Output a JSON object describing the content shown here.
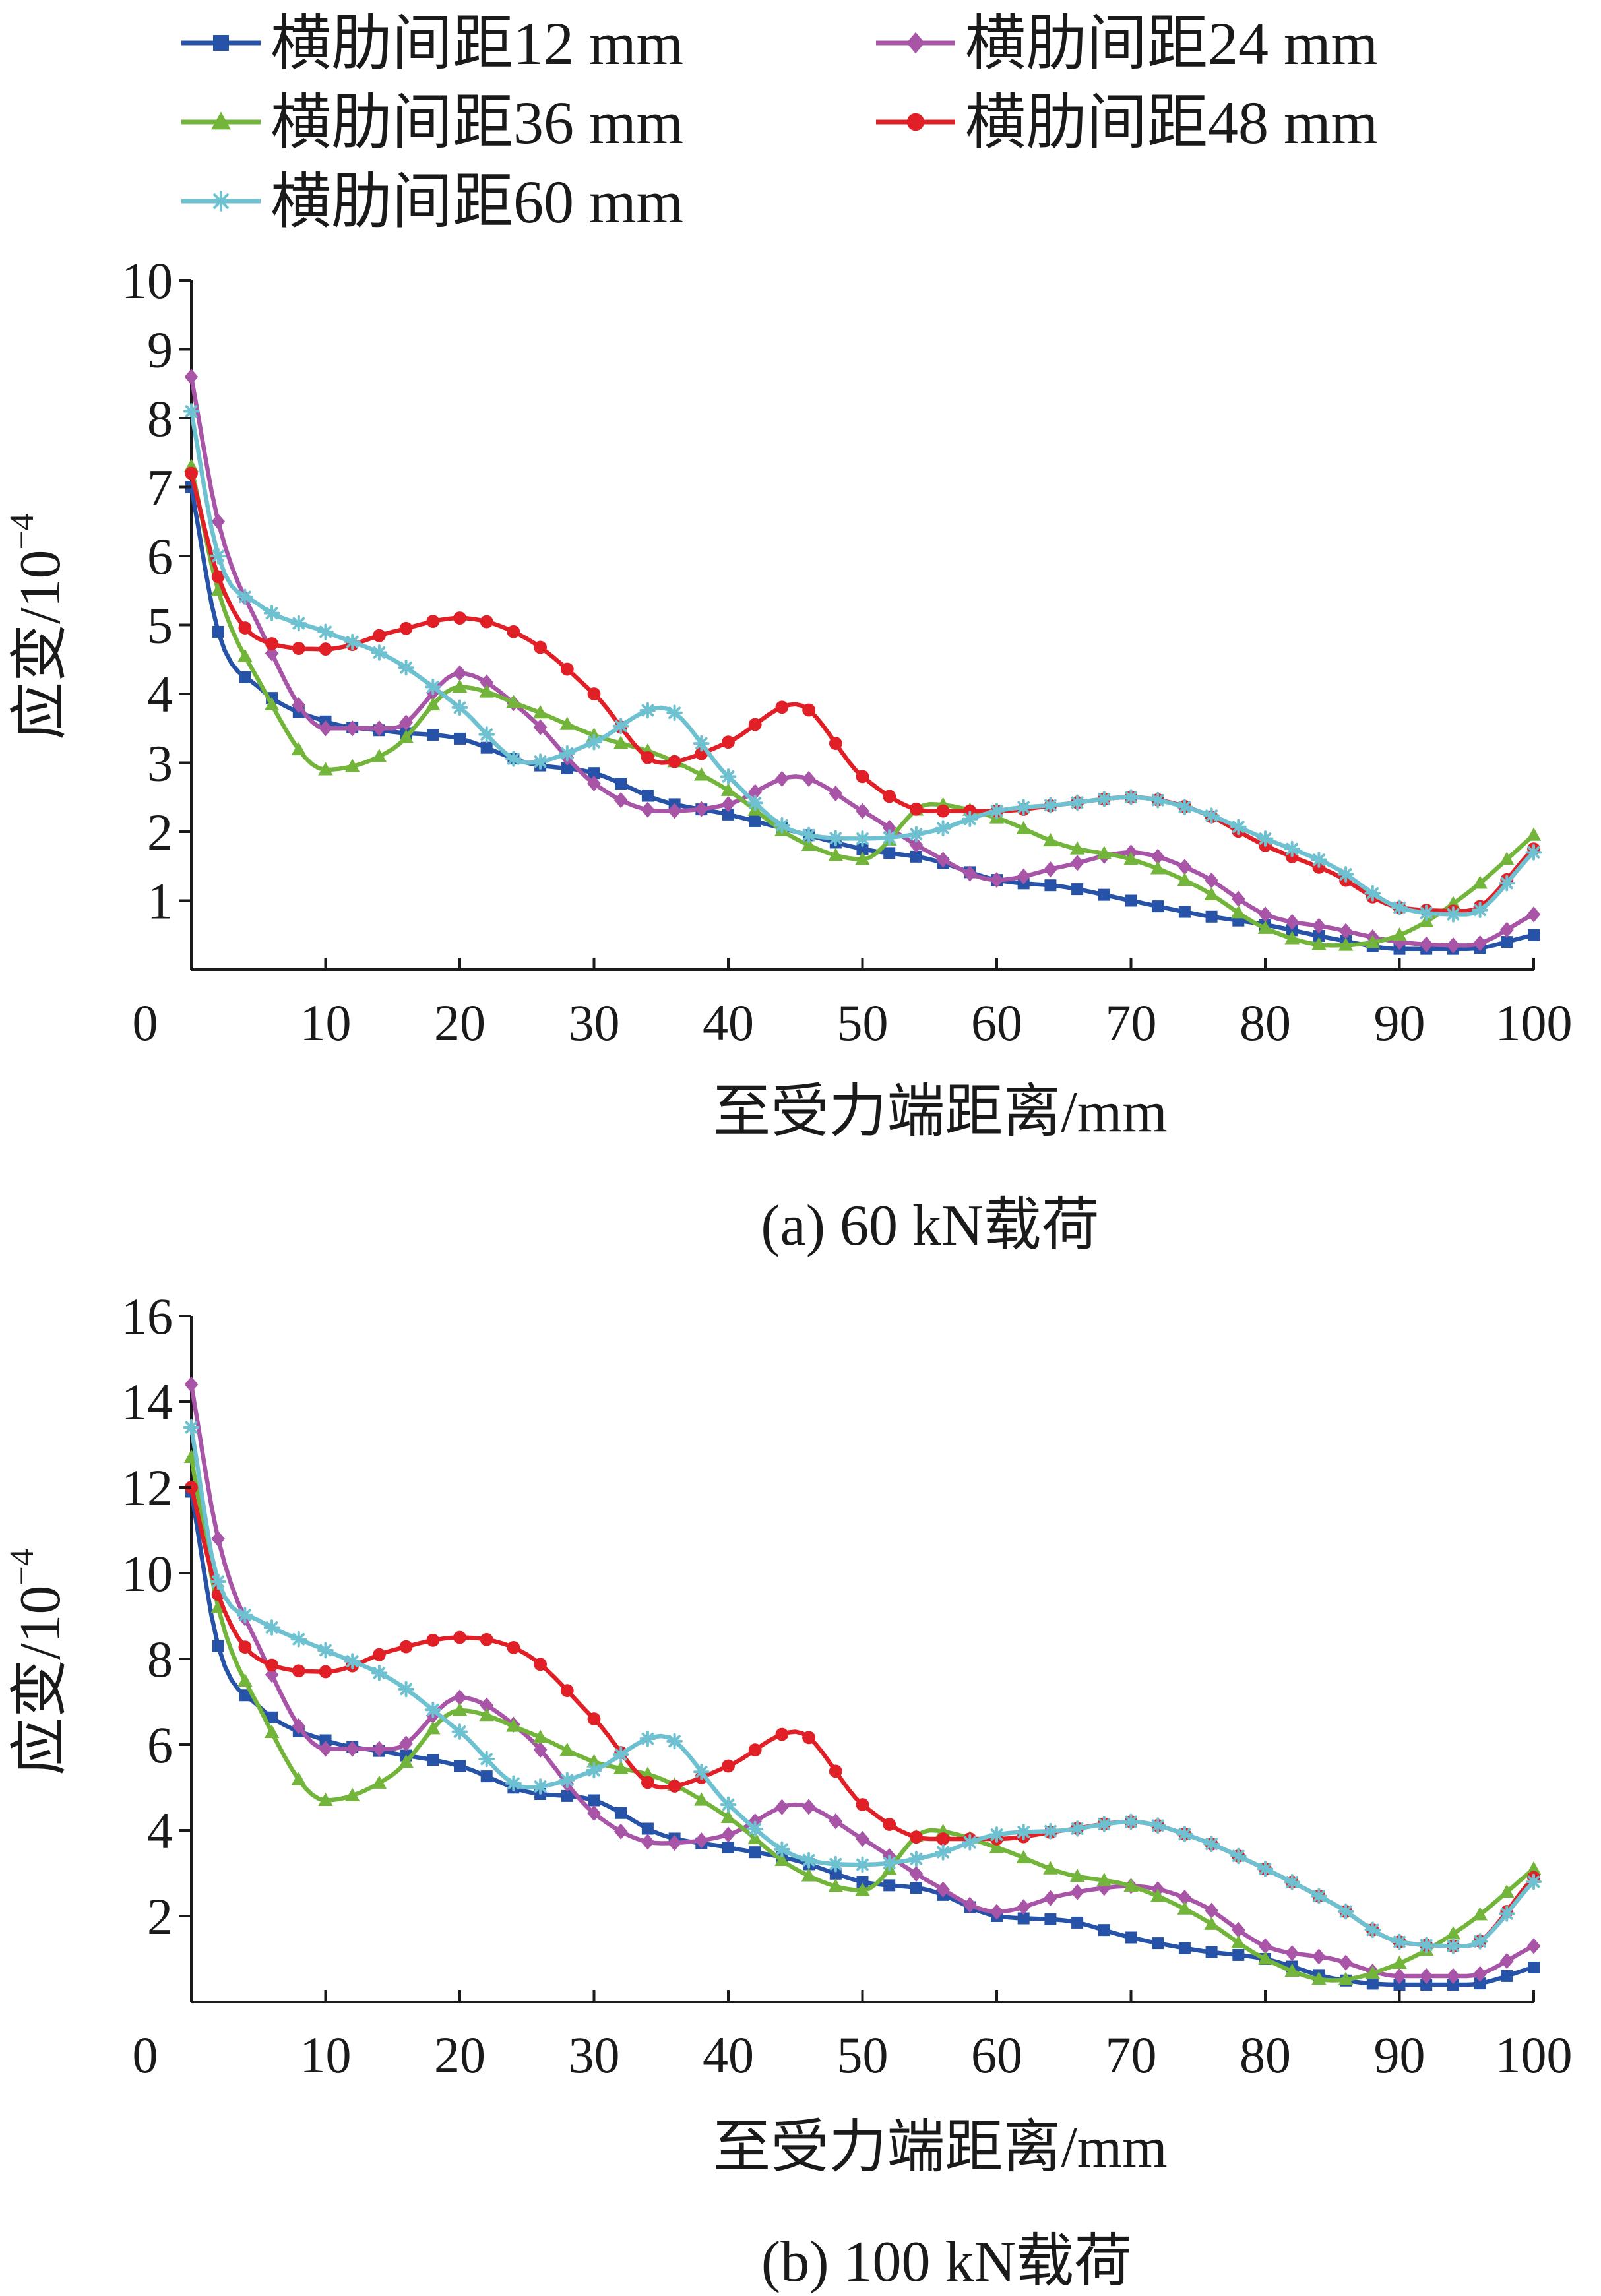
{
  "legend": [
    {
      "name": "横肋间距12 mm",
      "color": "#2652a8",
      "marker": "square"
    },
    {
      "name": "横肋间距24 mm",
      "color": "#a855a8",
      "marker": "diamond"
    },
    {
      "name": "横肋间距36 mm",
      "color": "#72b53a",
      "marker": "triangle"
    },
    {
      "name": "横肋间距48 mm",
      "color": "#e01f26",
      "marker": "circle"
    },
    {
      "name": "横肋间距60 mm",
      "color": "#6ec1d0",
      "marker": "asterisk"
    }
  ],
  "chart_data": [
    {
      "type": "line",
      "caption": "(a)  60 kN载荷",
      "xlabel": "至受力端距离/mm",
      "ylabel": "应变/10",
      "ylabel_exponent": "−4",
      "xlim": [
        0,
        100
      ],
      "ylim": [
        0,
        10
      ],
      "xticks": [
        "0",
        "10",
        "20",
        "30",
        "40",
        "50",
        "60",
        "70",
        "80",
        "90",
        "100"
      ],
      "yticks": [
        "1",
        "2",
        "3",
        "4",
        "5",
        "6",
        "7",
        "8",
        "9",
        "10"
      ],
      "x": [
        0,
        2,
        5,
        10,
        15,
        20,
        25,
        30,
        35,
        40,
        45,
        50,
        55,
        60,
        65,
        70,
        75,
        80,
        85,
        90,
        95,
        100
      ],
      "series": [
        {
          "name": "横肋间距12 mm",
          "values": [
            7.0,
            4.9,
            4.1,
            3.6,
            3.45,
            3.35,
            3.0,
            2.85,
            2.45,
            2.25,
            2.0,
            1.75,
            1.6,
            1.3,
            1.2,
            1.0,
            0.8,
            0.65,
            0.45,
            0.3,
            0.3,
            0.5
          ]
        },
        {
          "name": "横肋间距24 mm",
          "values": [
            8.6,
            6.5,
            5.0,
            3.5,
            3.5,
            4.3,
            3.7,
            2.7,
            2.3,
            2.4,
            2.8,
            2.3,
            1.7,
            1.3,
            1.5,
            1.7,
            1.4,
            0.8,
            0.6,
            0.4,
            0.35,
            0.8
          ]
        },
        {
          "name": "横肋间距36 mm",
          "values": [
            7.3,
            5.5,
            4.2,
            2.9,
            3.2,
            4.1,
            3.8,
            3.4,
            3.1,
            2.6,
            1.9,
            1.6,
            2.4,
            2.2,
            1.8,
            1.6,
            1.2,
            0.6,
            0.35,
            0.5,
            1.1,
            1.95
          ]
        },
        {
          "name": "横肋间距48 mm",
          "values": [
            7.2,
            5.7,
            4.8,
            4.65,
            4.9,
            5.1,
            4.8,
            4.0,
            3.0,
            3.3,
            3.85,
            2.8,
            2.3,
            2.3,
            2.4,
            2.5,
            2.3,
            1.8,
            1.4,
            0.9,
            0.85,
            1.75
          ]
        },
        {
          "name": "横肋间距60 mm",
          "values": [
            8.1,
            6.0,
            5.3,
            4.9,
            4.5,
            3.8,
            3.0,
            3.3,
            3.8,
            2.8,
            2.0,
            1.9,
            2.0,
            2.3,
            2.4,
            2.5,
            2.3,
            1.9,
            1.5,
            0.9,
            0.8,
            1.7
          ]
        }
      ]
    },
    {
      "type": "line",
      "caption": "(b)  100 kN载荷",
      "xlabel": "至受力端距离/mm",
      "ylabel": "应变/10",
      "ylabel_exponent": "−4",
      "xlim": [
        0,
        100
      ],
      "ylim": [
        0,
        16
      ],
      "xticks": [
        "0",
        "10",
        "20",
        "30",
        "40",
        "50",
        "60",
        "70",
        "80",
        "90",
        "100"
      ],
      "yticks": [
        "2",
        "4",
        "6",
        "8",
        "10",
        "12",
        "14",
        "16"
      ],
      "x": [
        0,
        2,
        5,
        10,
        15,
        20,
        25,
        30,
        35,
        40,
        45,
        50,
        55,
        60,
        65,
        70,
        75,
        80,
        85,
        90,
        95,
        100
      ],
      "series": [
        {
          "name": "横肋间距12 mm",
          "values": [
            11.9,
            8.3,
            6.9,
            6.1,
            5.8,
            5.5,
            4.9,
            4.7,
            3.9,
            3.6,
            3.3,
            2.8,
            2.6,
            2.0,
            1.9,
            1.5,
            1.2,
            1.0,
            0.55,
            0.4,
            0.4,
            0.8
          ]
        },
        {
          "name": "横肋间距24 mm",
          "values": [
            14.4,
            10.8,
            8.3,
            5.9,
            5.9,
            7.1,
            6.2,
            4.4,
            3.7,
            3.9,
            4.6,
            3.8,
            2.8,
            2.1,
            2.5,
            2.7,
            2.3,
            1.3,
            1.0,
            0.6,
            0.6,
            1.3
          ]
        },
        {
          "name": "横肋间距36 mm",
          "values": [
            12.7,
            9.2,
            6.9,
            4.7,
            5.3,
            6.8,
            6.3,
            5.6,
            5.2,
            4.3,
            3.1,
            2.6,
            4.0,
            3.6,
            3.0,
            2.7,
            2.0,
            1.0,
            0.5,
            0.9,
            1.8,
            3.1
          ]
        },
        {
          "name": "横肋间距48 mm",
          "values": [
            12.0,
            9.5,
            8.0,
            7.7,
            8.2,
            8.5,
            8.1,
            6.6,
            5.0,
            5.5,
            6.3,
            4.6,
            3.8,
            3.8,
            4.0,
            4.2,
            3.8,
            3.1,
            2.3,
            1.4,
            1.3,
            2.9
          ]
        },
        {
          "name": "横肋间距60 mm",
          "values": [
            13.4,
            9.8,
            8.9,
            8.2,
            7.5,
            6.3,
            5.0,
            5.4,
            6.2,
            4.6,
            3.4,
            3.2,
            3.4,
            3.9,
            4.0,
            4.2,
            3.8,
            3.1,
            2.3,
            1.4,
            1.3,
            2.8
          ]
        }
      ]
    }
  ]
}
